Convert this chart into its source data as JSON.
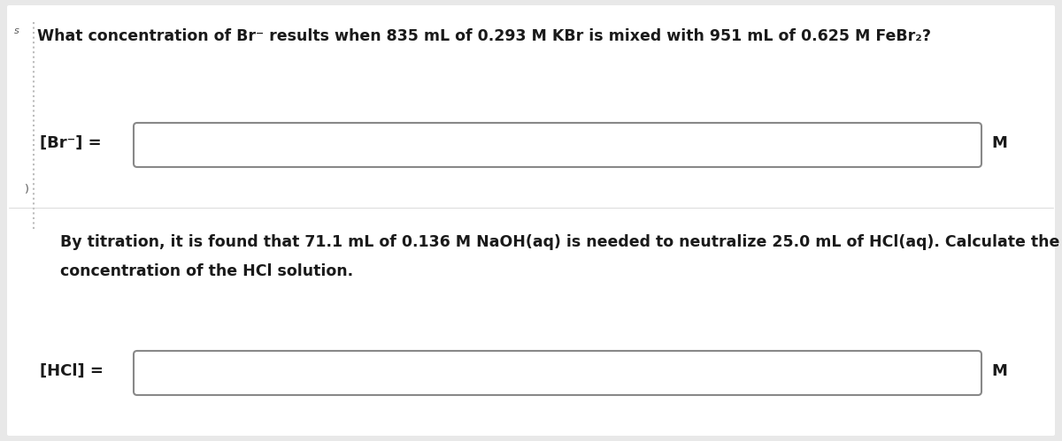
{
  "bg_color": "#e8e8e8",
  "panel_color": "#ffffff",
  "text_color": "#1a1a1a",
  "box_facecolor": "#ffffff",
  "box_edgecolor": "#888888",
  "left_line_color": "#bbbbbb",
  "question1": "What concentration of Br⁻ results when 835 mL of 0.293 M KBr is mixed with 951 mL of 0.625 M FeBr₂?",
  "label1": "[Br⁻] =",
  "unit1": "M",
  "question2_line1": "By titration, it is found that 71.1 mL of 0.136 M NaOH(aq) is needed to neutralize 25.0 mL of HCl(aq). Calculate the",
  "question2_line2": "concentration of the HCl solution.",
  "label2": "[HCl] =",
  "unit2": "M",
  "font_size_question": 12.5,
  "font_size_label": 13,
  "font_size_unit": 13,
  "font_size_small": 9
}
